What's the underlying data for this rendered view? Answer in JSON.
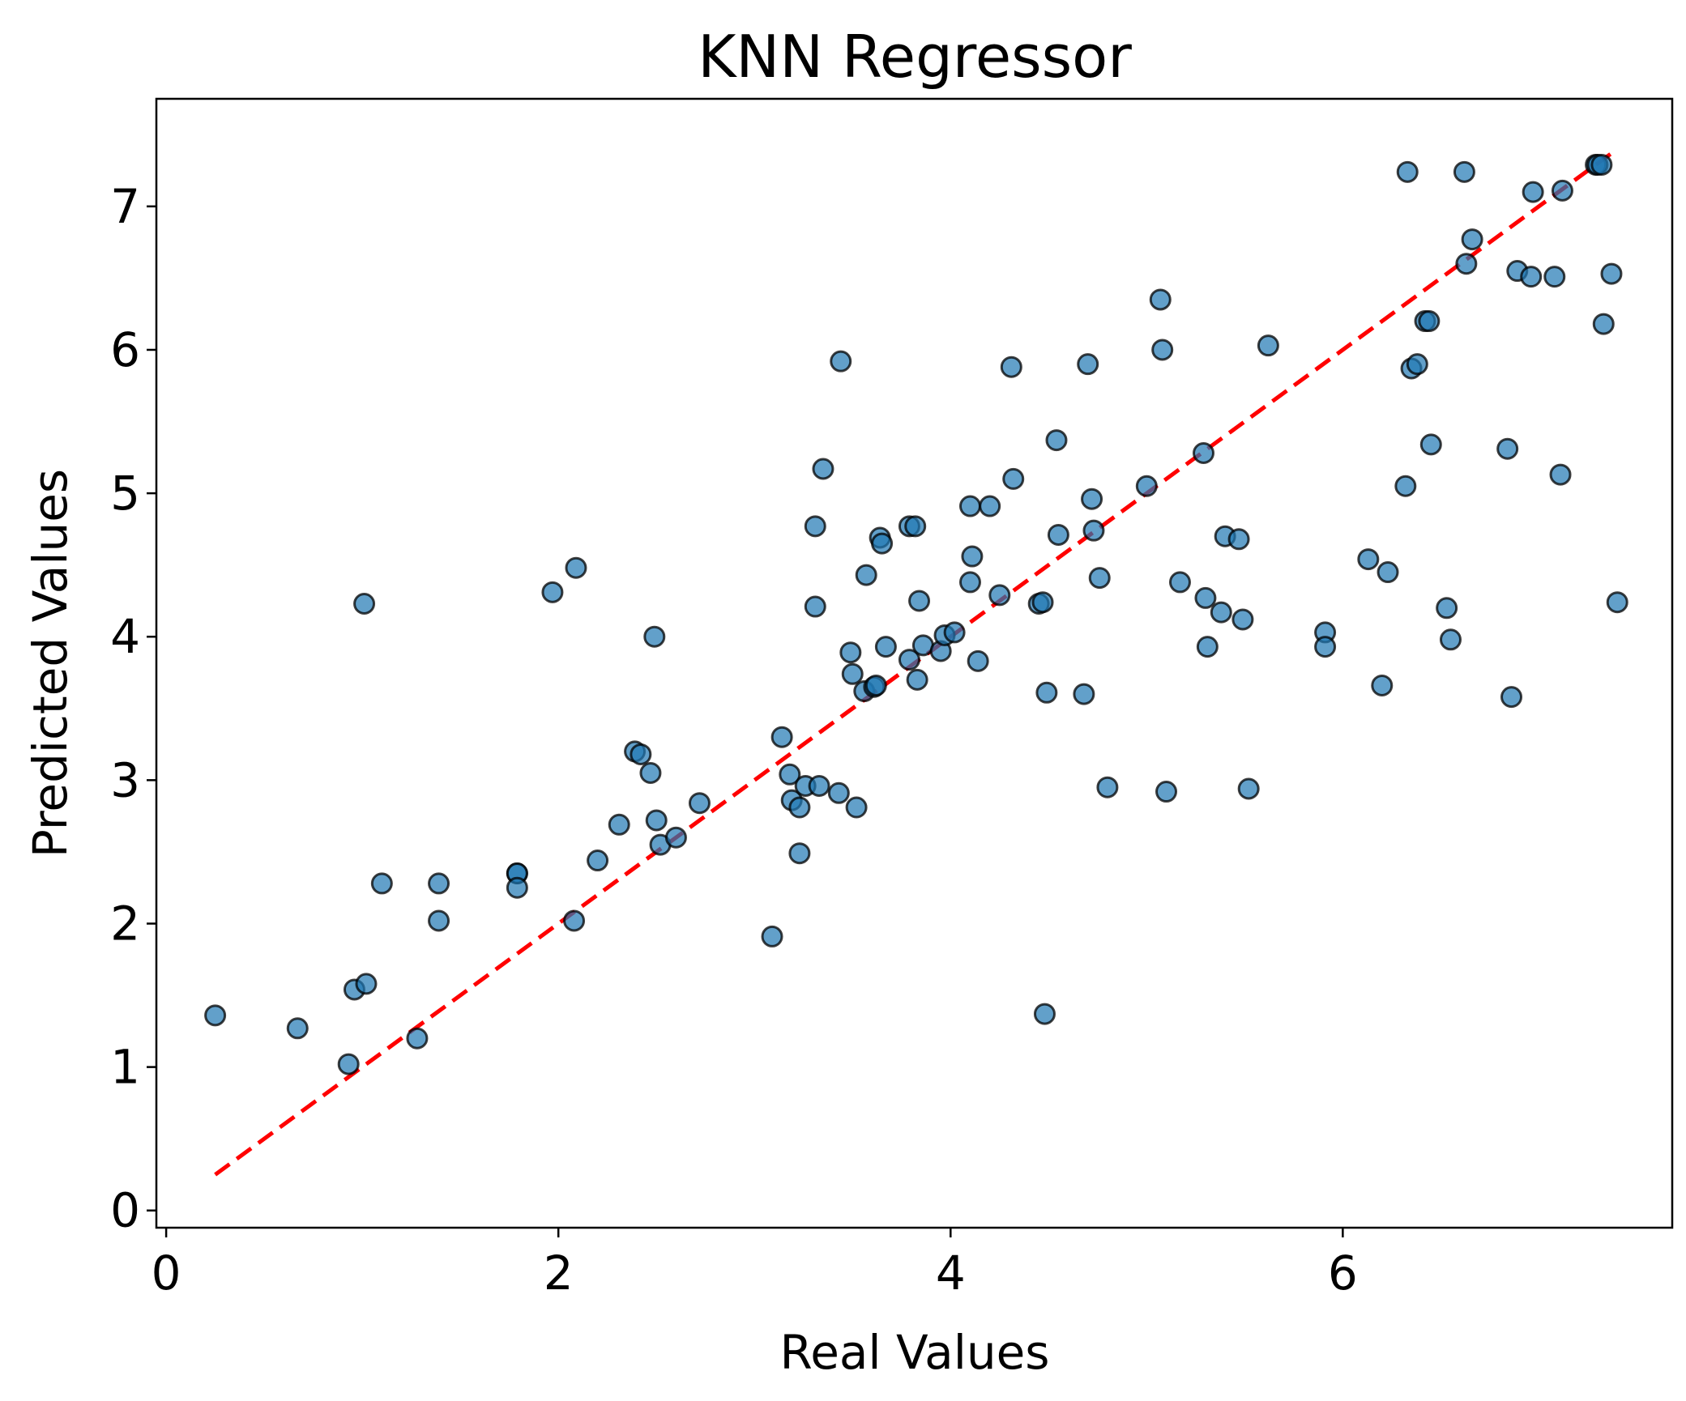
{
  "chart_data": {
    "type": "scatter",
    "title": "KNN Regressor",
    "xlabel": "Real Values",
    "ylabel": "Predicted Values",
    "xlim": [
      -0.05,
      7.68
    ],
    "ylim": [
      -0.12,
      7.75
    ],
    "xticks": [
      0,
      2,
      4,
      6
    ],
    "yticks": [
      0,
      1,
      2,
      3,
      4,
      5,
      6,
      7
    ],
    "grid": false,
    "colors": {
      "point_fill": "#1f77b4",
      "point_edge": "#000000",
      "ideal_line": "#ff0000"
    },
    "ideal_line": {
      "x": [
        0.25,
        7.4
      ],
      "y": [
        0.25,
        7.4
      ],
      "style": "dashed"
    },
    "points": [
      [
        0.25,
        1.36
      ],
      [
        0.67,
        1.27
      ],
      [
        0.93,
        1.02
      ],
      [
        0.96,
        1.54
      ],
      [
        1.02,
        1.58
      ],
      [
        1.01,
        4.23
      ],
      [
        1.1,
        2.28
      ],
      [
        1.28,
        1.2
      ],
      [
        1.39,
        2.28
      ],
      [
        1.39,
        2.02
      ],
      [
        1.79,
        2.35
      ],
      [
        1.79,
        2.35
      ],
      [
        1.79,
        2.25
      ],
      [
        1.97,
        4.31
      ],
      [
        2.09,
        4.48
      ],
      [
        2.08,
        2.02
      ],
      [
        2.2,
        2.44
      ],
      [
        2.31,
        2.69
      ],
      [
        2.39,
        3.2
      ],
      [
        2.42,
        3.18
      ],
      [
        2.47,
        3.05
      ],
      [
        2.49,
        4.0
      ],
      [
        2.5,
        2.72
      ],
      [
        2.52,
        2.55
      ],
      [
        2.6,
        2.6
      ],
      [
        2.72,
        2.84
      ],
      [
        3.09,
        1.91
      ],
      [
        3.14,
        3.3
      ],
      [
        3.18,
        3.04
      ],
      [
        3.19,
        2.86
      ],
      [
        3.23,
        2.81
      ],
      [
        3.23,
        2.49
      ],
      [
        3.26,
        2.96
      ],
      [
        3.33,
        2.96
      ],
      [
        3.43,
        2.91
      ],
      [
        3.52,
        2.81
      ],
      [
        3.31,
        4.77
      ],
      [
        3.31,
        4.21
      ],
      [
        3.35,
        5.17
      ],
      [
        3.44,
        5.92
      ],
      [
        3.49,
        3.89
      ],
      [
        3.5,
        3.74
      ],
      [
        3.56,
        3.62
      ],
      [
        3.57,
        4.43
      ],
      [
        3.61,
        3.65
      ],
      [
        3.62,
        3.66
      ],
      [
        3.64,
        4.69
      ],
      [
        3.65,
        4.65
      ],
      [
        3.67,
        3.93
      ],
      [
        3.79,
        4.77
      ],
      [
        3.82,
        4.77
      ],
      [
        3.79,
        3.84
      ],
      [
        3.84,
        4.25
      ],
      [
        3.83,
        3.7
      ],
      [
        3.86,
        3.94
      ],
      [
        3.95,
        3.9
      ],
      [
        3.97,
        4.01
      ],
      [
        4.02,
        4.03
      ],
      [
        4.1,
        4.91
      ],
      [
        4.11,
        4.56
      ],
      [
        4.1,
        4.38
      ],
      [
        4.14,
        3.83
      ],
      [
        4.2,
        4.91
      ],
      [
        4.25,
        4.29
      ],
      [
        4.31,
        5.88
      ],
      [
        4.32,
        5.1
      ],
      [
        4.45,
        4.23
      ],
      [
        4.47,
        4.24
      ],
      [
        4.49,
        3.61
      ],
      [
        4.48,
        1.37
      ],
      [
        4.54,
        5.37
      ],
      [
        4.55,
        4.71
      ],
      [
        4.68,
        3.6
      ],
      [
        4.7,
        5.9
      ],
      [
        4.72,
        4.96
      ],
      [
        4.73,
        4.74
      ],
      [
        4.76,
        4.41
      ],
      [
        4.8,
        2.95
      ],
      [
        5.0,
        5.05
      ],
      [
        5.07,
        6.35
      ],
      [
        5.08,
        6.0
      ],
      [
        5.1,
        2.92
      ],
      [
        5.17,
        4.38
      ],
      [
        5.29,
        5.28
      ],
      [
        5.3,
        4.27
      ],
      [
        5.31,
        3.93
      ],
      [
        5.38,
        4.17
      ],
      [
        5.4,
        4.7
      ],
      [
        5.47,
        4.68
      ],
      [
        5.49,
        4.12
      ],
      [
        5.52,
        2.94
      ],
      [
        5.62,
        6.03
      ],
      [
        5.91,
        4.03
      ],
      [
        5.91,
        3.93
      ],
      [
        6.13,
        4.54
      ],
      [
        6.2,
        3.66
      ],
      [
        6.23,
        4.45
      ],
      [
        6.32,
        5.05
      ],
      [
        6.33,
        7.24
      ],
      [
        6.35,
        5.87
      ],
      [
        6.38,
        5.9
      ],
      [
        6.42,
        6.2
      ],
      [
        6.44,
        6.2
      ],
      [
        6.45,
        5.34
      ],
      [
        6.53,
        4.2
      ],
      [
        6.55,
        3.98
      ],
      [
        6.62,
        7.24
      ],
      [
        6.63,
        6.6
      ],
      [
        6.66,
        6.77
      ],
      [
        6.84,
        5.31
      ],
      [
        6.86,
        3.58
      ],
      [
        6.89,
        6.55
      ],
      [
        6.96,
        6.51
      ],
      [
        6.97,
        7.1
      ],
      [
        7.08,
        6.51
      ],
      [
        7.11,
        5.13
      ],
      [
        7.12,
        7.11
      ],
      [
        7.29,
        7.29
      ],
      [
        7.3,
        7.29
      ],
      [
        7.32,
        7.29
      ],
      [
        7.33,
        6.18
      ],
      [
        7.37,
        6.53
      ],
      [
        7.4,
        4.24
      ]
    ]
  }
}
